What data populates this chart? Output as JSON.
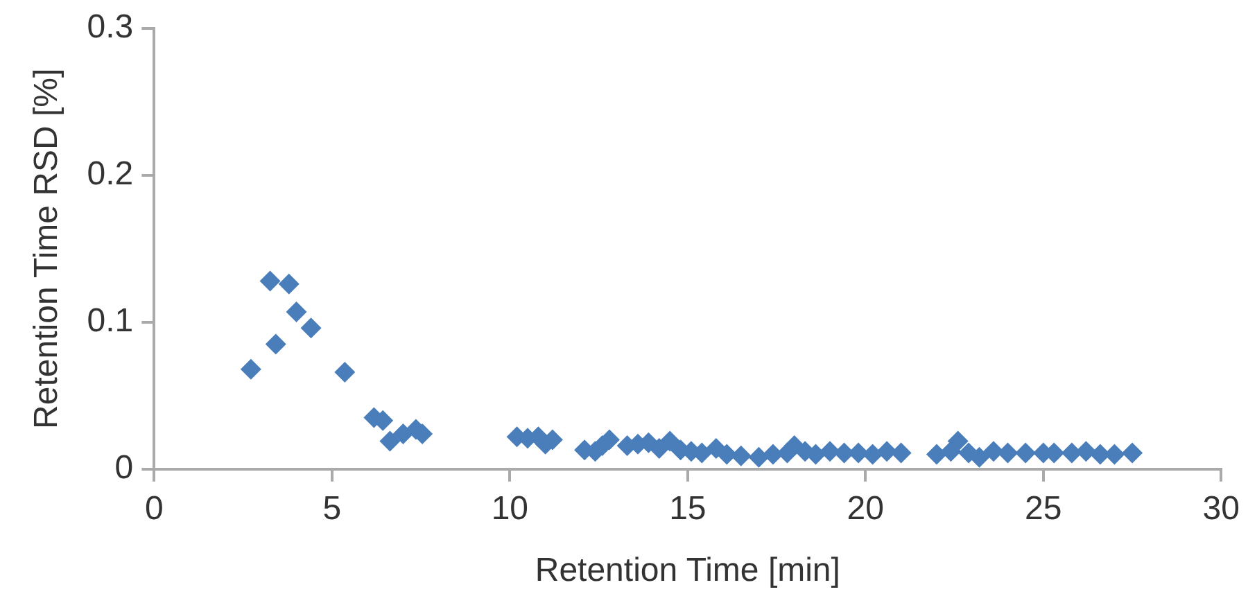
{
  "chart_data": {
    "type": "scatter",
    "xlabel": "Retention Time [min]",
    "ylabel": "Retention Time RSD [%]",
    "xlim": [
      0,
      30
    ],
    "xticks": [
      0,
      5,
      10,
      15,
      20,
      25,
      30
    ],
    "ylim": [
      0,
      0.3
    ],
    "yticks": [
      0,
      0.1,
      0.2,
      0.3
    ],
    "grid": false,
    "legend": false,
    "marker": "diamond",
    "series": [
      {
        "color": "#4a7ebb",
        "x": [
          2.72,
          3.26,
          3.42,
          3.79,
          4.0,
          4.41,
          5.36,
          6.18,
          6.43,
          6.63,
          7.0,
          7.36,
          7.54,
          10.2,
          10.5,
          10.8,
          11.0,
          11.2,
          12.1,
          12.4,
          12.6,
          12.8,
          13.3,
          13.6,
          13.9,
          14.2,
          14.5,
          14.8,
          15.1,
          15.4,
          15.8,
          16.1,
          16.5,
          17.0,
          17.4,
          17.8,
          18.0,
          18.3,
          18.6,
          19.0,
          19.4,
          19.8,
          20.2,
          20.6,
          21.0,
          22.0,
          22.4,
          22.6,
          22.9,
          23.2,
          23.6,
          24.0,
          24.5,
          25.0,
          25.3,
          25.8,
          26.2,
          26.6,
          27.0,
          27.5
        ],
        "values": [
          0.068,
          0.128,
          0.085,
          0.126,
          0.107,
          0.096,
          0.066,
          0.035,
          0.033,
          0.019,
          0.024,
          0.027,
          0.024,
          0.022,
          0.021,
          0.022,
          0.017,
          0.02,
          0.013,
          0.012,
          0.016,
          0.02,
          0.016,
          0.017,
          0.018,
          0.014,
          0.019,
          0.013,
          0.012,
          0.011,
          0.014,
          0.01,
          0.009,
          0.008,
          0.01,
          0.011,
          0.016,
          0.012,
          0.01,
          0.012,
          0.011,
          0.011,
          0.01,
          0.012,
          0.011,
          0.01,
          0.012,
          0.019,
          0.011,
          0.008,
          0.012,
          0.011,
          0.011,
          0.011,
          0.011,
          0.011,
          0.012,
          0.01,
          0.01,
          0.011
        ]
      }
    ]
  }
}
